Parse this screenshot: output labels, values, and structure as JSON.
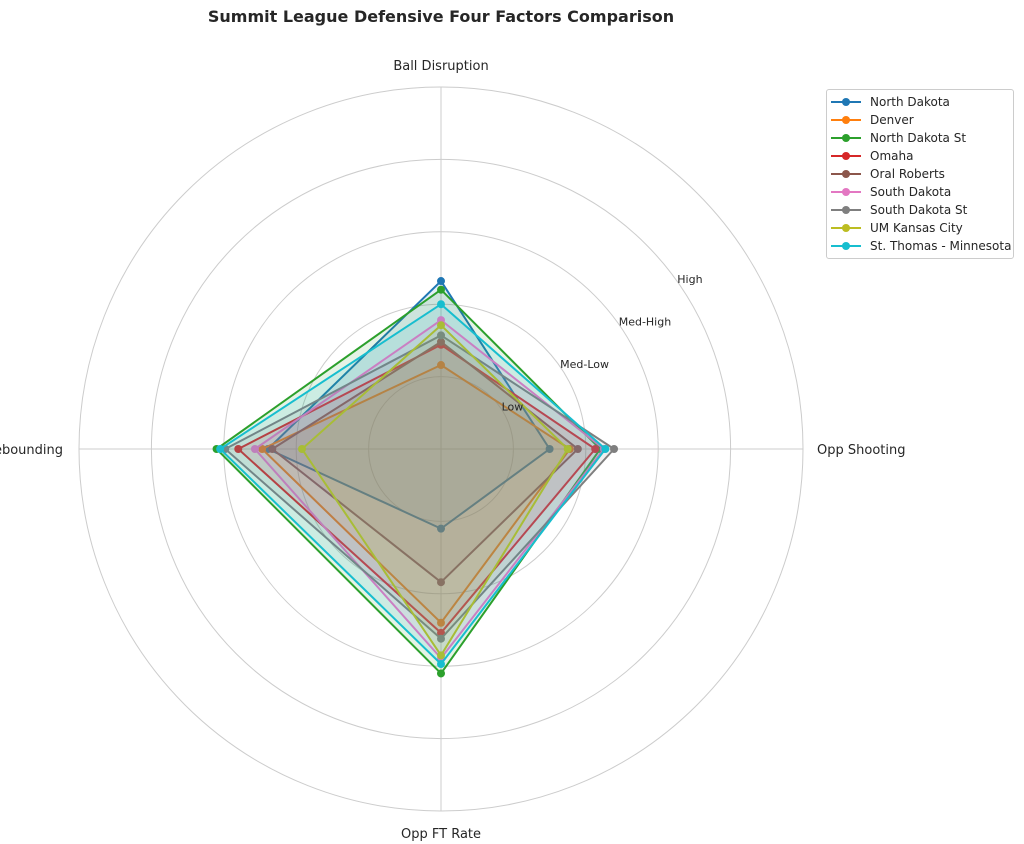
{
  "chart_data": {
    "type": "radar",
    "title": "Summit League Defensive Four Factors Comparison",
    "axes": [
      "Ball Disruption",
      "Opp Shooting",
      "Opp FT Rate",
      "Def Rebounding"
    ],
    "rlim": [
      0,
      5
    ],
    "ring_labels": [
      {
        "value": 1,
        "label": "Low"
      },
      {
        "value": 2,
        "label": "Med-Low"
      },
      {
        "value": 3,
        "label": "Med-High"
      },
      {
        "value": 4,
        "label": "High"
      }
    ],
    "legend_position": "top-right",
    "grid": true,
    "series": [
      {
        "name": "North Dakota",
        "color": "#1f77b4",
        "values": [
          2.32,
          1.5,
          1.1,
          2.39
        ]
      },
      {
        "name": "Denver",
        "color": "#ff7f0e",
        "values": [
          1.16,
          1.78,
          2.4,
          2.47
        ]
      },
      {
        "name": "North Dakota St",
        "color": "#2ca02c",
        "values": [
          2.2,
          2.2,
          3.1,
          3.1
        ]
      },
      {
        "name": "Omaha",
        "color": "#d62728",
        "values": [
          1.44,
          2.13,
          2.54,
          2.8
        ]
      },
      {
        "name": "Oral Roberts",
        "color": "#8c564b",
        "values": [
          1.48,
          1.89,
          1.84,
          2.33
        ]
      },
      {
        "name": "South Dakota",
        "color": "#e377c2",
        "values": [
          1.78,
          2.25,
          2.89,
          2.57
        ]
      },
      {
        "name": "South Dakota St",
        "color": "#7f7f7f",
        "values": [
          1.57,
          2.39,
          2.62,
          2.98
        ]
      },
      {
        "name": "UM Kansas City",
        "color": "#bcbd22",
        "values": [
          1.71,
          1.75,
          2.85,
          1.92
        ]
      },
      {
        "name": "St. Thomas - Minnesota",
        "color": "#17becf",
        "values": [
          2.0,
          2.27,
          2.97,
          3.05
        ]
      }
    ]
  }
}
